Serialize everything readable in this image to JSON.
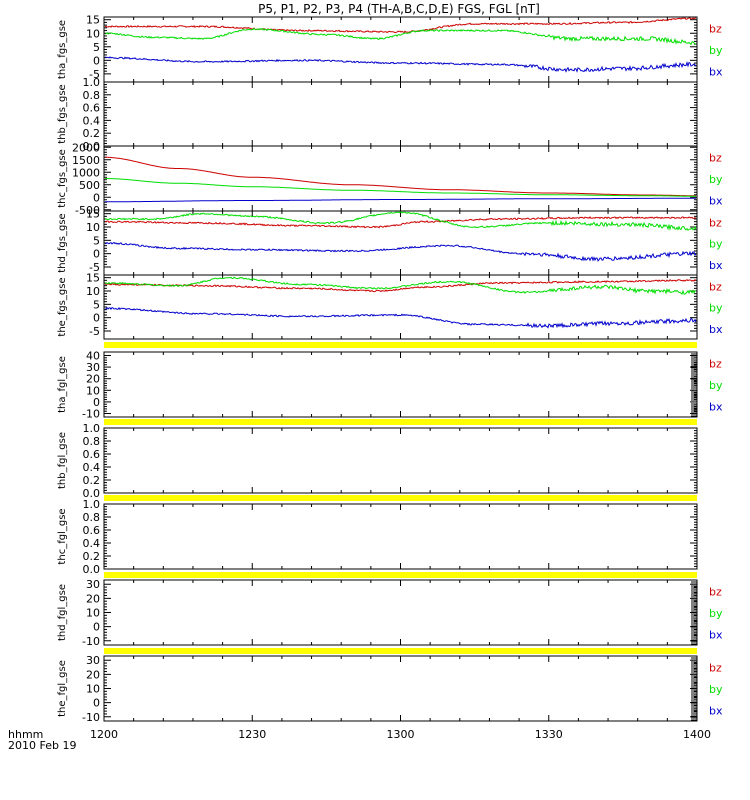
{
  "title": "P5, P1, P2, P3, P4 (TH-A,B,C,D,E) FGS, FGL [nT]",
  "time_axis": {
    "caption_line1": "hhmm",
    "caption_line2": "2010 Feb 19",
    "range_hhmm": [
      "1200",
      "1400"
    ],
    "tick_labels": [
      "1200",
      "1230",
      "1300",
      "1330",
      "1400"
    ],
    "tick_minutes": [
      0,
      30,
      60,
      90,
      120
    ]
  },
  "colors": {
    "bz": "#cc0000",
    "by": "#00dd00",
    "bx": "#0000cc",
    "flag": "#ffff00"
  },
  "chart_data": [
    {
      "type": "line",
      "ylabel": "tha_fgs_gse",
      "ylim": [
        -8,
        16
      ],
      "yticks": [
        -5,
        0,
        5,
        10,
        15
      ],
      "yticklabels": [
        "-5",
        "0",
        "5",
        "10",
        "15"
      ],
      "legend": [
        "bz",
        "by",
        "bx"
      ],
      "series": [
        {
          "name": "bz",
          "x": [
            0,
            20,
            40,
            60,
            75,
            90,
            105,
            120
          ],
          "y": [
            12.5,
            12.5,
            11,
            10.5,
            13.5,
            13.5,
            14,
            15.5
          ]
        },
        {
          "name": "by",
          "x": [
            0,
            10,
            20,
            30,
            45,
            55,
            65,
            80,
            95,
            110,
            120
          ],
          "y": [
            10,
            8.5,
            8,
            11.5,
            9.5,
            8,
            11,
            11,
            8,
            8,
            6.5
          ]
        },
        {
          "name": "bx",
          "x": [
            0,
            20,
            40,
            60,
            80,
            95,
            105,
            120
          ],
          "y": [
            1,
            -0.5,
            0,
            -1,
            -1.5,
            -3.5,
            -3,
            -1.5
          ]
        }
      ]
    },
    {
      "type": "line",
      "ylabel": "thb_fgs_gse",
      "ylim": [
        0,
        1
      ],
      "yticks": [
        0,
        0.2,
        0.4,
        0.6,
        0.8,
        1.0
      ],
      "yticklabels": [
        "0.0",
        "0.2",
        "0.4",
        "0.6",
        "0.8",
        "1.0"
      ],
      "legend": [],
      "series": []
    },
    {
      "type": "line",
      "ylabel": "thc_fgs_gse",
      "ylim": [
        -550,
        2050
      ],
      "yticks": [
        -500,
        0,
        500,
        1000,
        1500,
        2000
      ],
      "yticklabels": [
        "-500",
        "0",
        "500",
        "1000",
        "1500",
        "2000"
      ],
      "legend": [
        "bz",
        "by",
        "bx"
      ],
      "series": [
        {
          "name": "bz",
          "x": [
            0,
            15,
            30,
            50,
            70,
            90,
            110,
            120
          ],
          "y": [
            1600,
            1150,
            800,
            500,
            300,
            170,
            90,
            60
          ]
        },
        {
          "name": "by",
          "x": [
            0,
            15,
            30,
            50,
            70,
            90,
            110,
            120
          ],
          "y": [
            750,
            560,
            420,
            280,
            170,
            100,
            60,
            40
          ]
        },
        {
          "name": "bx",
          "x": [
            0,
            30,
            60,
            90,
            120
          ],
          "y": [
            -180,
            -130,
            -90,
            -60,
            -40
          ]
        }
      ]
    },
    {
      "type": "line",
      "ylabel": "thd_fgs_gse",
      "ylim": [
        -8,
        16
      ],
      "yticks": [
        -5,
        0,
        5,
        10,
        15
      ],
      "yticklabels": [
        "-5",
        "0",
        "5",
        "10",
        "15"
      ],
      "legend": [
        "bz",
        "by",
        "bx"
      ],
      "series": [
        {
          "name": "bz",
          "x": [
            0,
            20,
            40,
            55,
            65,
            80,
            100,
            120
          ],
          "y": [
            12,
            11.5,
            10.5,
            10,
            12,
            13,
            13.5,
            13.5
          ]
        },
        {
          "name": "by",
          "x": [
            0,
            10,
            20,
            30,
            45,
            60,
            75,
            90,
            105,
            120
          ],
          "y": [
            13,
            13,
            15,
            14,
            11.5,
            15.5,
            10,
            11.5,
            11,
            9.5
          ]
        },
        {
          "name": "bx",
          "x": [
            0,
            15,
            30,
            50,
            70,
            85,
            100,
            120
          ],
          "y": [
            4,
            2,
            1.5,
            1,
            3,
            0,
            -2,
            0
          ]
        }
      ]
    },
    {
      "type": "line",
      "ylabel": "the_fgs_gse",
      "ylim": [
        -8,
        16
      ],
      "yticks": [
        -5,
        0,
        5,
        10,
        15
      ],
      "yticklabels": [
        "-5",
        "0",
        "5",
        "10",
        "15"
      ],
      "legend": [
        "bz",
        "by",
        "bx"
      ],
      "series": [
        {
          "name": "bz",
          "x": [
            0,
            20,
            40,
            55,
            65,
            80,
            100,
            120
          ],
          "y": [
            12.5,
            12,
            11,
            10,
            11.5,
            13,
            13.5,
            14
          ]
        },
        {
          "name": "by",
          "x": [
            0,
            15,
            25,
            40,
            55,
            70,
            85,
            100,
            110,
            120
          ],
          "y": [
            13,
            12,
            15,
            12.5,
            11,
            13.5,
            9.5,
            11.5,
            10,
            9.5
          ]
        },
        {
          "name": "bx",
          "x": [
            0,
            20,
            40,
            60,
            75,
            90,
            105,
            120
          ],
          "y": [
            3.5,
            1.5,
            0.5,
            1,
            -2.5,
            -3,
            -2,
            -1
          ]
        }
      ]
    },
    {
      "type": "line",
      "ylabel": "tha_fgl_gse",
      "ylim": [
        -13,
        43
      ],
      "yticks": [
        -10,
        0,
        10,
        20,
        30,
        40
      ],
      "yticklabels": [
        "-10",
        "0",
        "10",
        "20",
        "30",
        "40"
      ],
      "legend": [
        "bz",
        "by",
        "bx"
      ],
      "series": []
    },
    {
      "type": "line",
      "ylabel": "thb_fgl_gse",
      "ylim": [
        0,
        1
      ],
      "yticks": [
        0,
        0.2,
        0.4,
        0.6,
        0.8,
        1.0
      ],
      "yticklabels": [
        "0.0",
        "0.2",
        "0.4",
        "0.6",
        "0.8",
        "1.0"
      ],
      "legend": [],
      "series": []
    },
    {
      "type": "line",
      "ylabel": "thc_fgl_gse",
      "ylim": [
        0,
        1
      ],
      "yticks": [
        0,
        0.2,
        0.4,
        0.6,
        0.8,
        1.0
      ],
      "yticklabels": [
        "0.0",
        "0.2",
        "0.4",
        "0.6",
        "0.8",
        "1.0"
      ],
      "legend": [],
      "series": []
    },
    {
      "type": "line",
      "ylabel": "thd_fgl_gse",
      "ylim": [
        -13,
        33
      ],
      "yticks": [
        -10,
        0,
        10,
        20,
        30
      ],
      "yticklabels": [
        "-10",
        "0",
        "10",
        "20",
        "30"
      ],
      "legend": [
        "bz",
        "by",
        "bx"
      ],
      "series": []
    },
    {
      "type": "line",
      "ylabel": "the_fgl_gse",
      "ylim": [
        -13,
        33
      ],
      "yticks": [
        -10,
        0,
        10,
        20,
        30
      ],
      "yticklabels": [
        "-10",
        "0",
        "10",
        "20",
        "30"
      ],
      "legend": [
        "bz",
        "by",
        "bx"
      ],
      "series": []
    }
  ]
}
